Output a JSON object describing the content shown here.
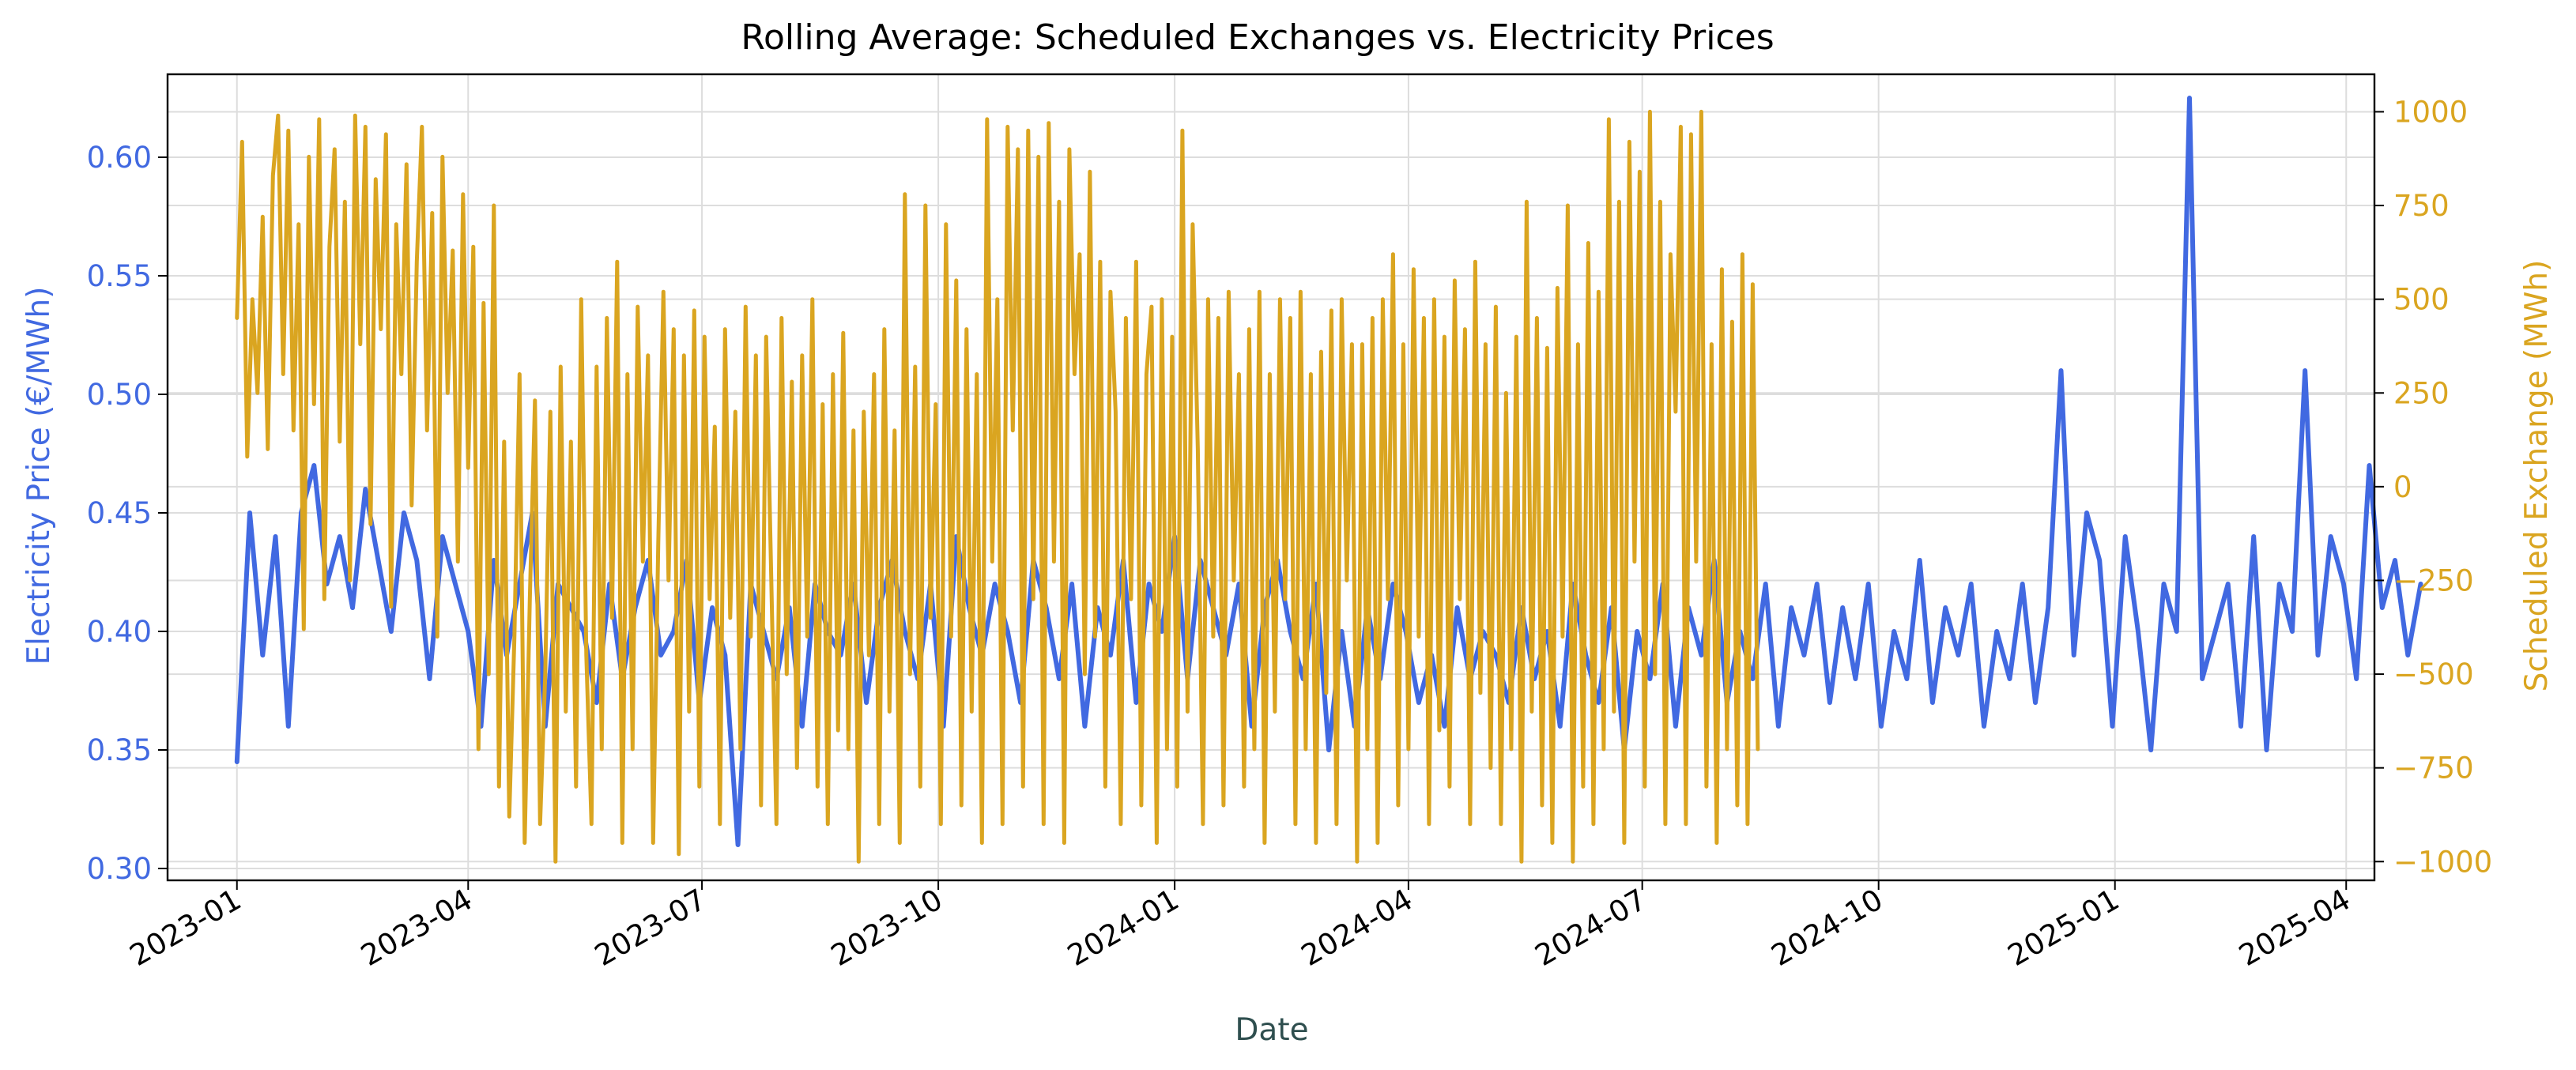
{
  "chart_data": {
    "type": "line",
    "title": "Rolling Average: Scheduled Exchanges vs. Electricity Prices",
    "xlabel": "Date",
    "ylabel_left": "Electricity Price (€/MWh)",
    "ylabel_right": "Scheduled Exchange (MWh)",
    "x_range": [
      "2022-12-05",
      "2025-04-12"
    ],
    "x_ticks": [
      "2023-01",
      "2023-04",
      "2023-07",
      "2023-10",
      "2024-01",
      "2024-04",
      "2024-07",
      "2024-10",
      "2025-01",
      "2025-04"
    ],
    "ylim_left": [
      0.295,
      0.635
    ],
    "yticks_left": [
      "0.30",
      "0.35",
      "0.40",
      "0.45",
      "0.50",
      "0.55",
      "0.60"
    ],
    "ylim_right": [
      -1050,
      1100
    ],
    "yticks_right": [
      "−1000",
      "−750",
      "−500",
      "−250",
      "0",
      "250",
      "500",
      "750",
      "1000"
    ],
    "grid": true,
    "colors": {
      "price": "#4169e1",
      "exchange": "#daa520",
      "xlabel": "#2f4f4f",
      "grid": "#dddddd"
    },
    "series": [
      {
        "axis": "left",
        "color": "#4169e1",
        "start_date": "2023-01-01",
        "step_days": 5,
        "values": [
          0.345,
          0.45,
          0.39,
          0.44,
          0.36,
          0.45,
          0.47,
          0.42,
          0.44,
          0.41,
          0.46,
          0.43,
          0.4,
          0.45,
          0.43,
          0.38,
          0.44,
          0.42,
          0.4,
          0.36,
          0.43,
          0.39,
          0.42,
          0.45,
          0.36,
          0.42,
          0.41,
          0.4,
          0.37,
          0.42,
          0.38,
          0.41,
          0.43,
          0.39,
          0.4,
          0.43,
          0.37,
          0.41,
          0.39,
          0.31,
          0.42,
          0.4,
          0.38,
          0.41,
          0.36,
          0.42,
          0.4,
          0.39,
          0.42,
          0.37,
          0.41,
          0.43,
          0.4,
          0.38,
          0.42,
          0.36,
          0.44,
          0.41,
          0.39,
          0.42,
          0.4,
          0.37,
          0.43,
          0.41,
          0.38,
          0.42,
          0.36,
          0.41,
          0.39,
          0.43,
          0.37,
          0.42,
          0.4,
          0.44,
          0.38,
          0.43,
          0.41,
          0.39,
          0.42,
          0.36,
          0.41,
          0.43,
          0.4,
          0.38,
          0.42,
          0.35,
          0.4,
          0.36,
          0.41,
          0.38,
          0.42,
          0.4,
          0.37,
          0.39,
          0.36,
          0.41,
          0.38,
          0.4,
          0.39,
          0.37,
          0.41,
          0.38,
          0.4,
          0.36,
          0.42,
          0.39,
          0.37,
          0.41,
          0.35,
          0.4,
          0.38,
          0.42,
          0.36,
          0.41,
          0.39,
          0.43,
          0.37,
          0.4,
          0.38,
          0.42,
          0.36,
          0.41,
          0.39,
          0.42,
          0.37,
          0.41,
          0.38,
          0.42,
          0.36,
          0.4,
          0.38,
          0.43,
          0.37,
          0.41,
          0.39,
          0.42,
          0.36,
          0.4,
          0.38,
          0.42,
          0.37,
          0.41,
          0.51,
          0.39,
          0.45,
          0.43,
          0.36,
          0.44,
          0.4,
          0.35,
          0.42,
          0.4,
          0.625,
          0.38,
          0.4,
          0.42,
          0.36,
          0.44,
          0.35,
          0.42,
          0.4,
          0.51,
          0.39,
          0.44,
          0.42,
          0.38,
          0.47,
          0.41,
          0.43,
          0.39,
          0.42
        ]
      },
      {
        "axis": "right",
        "color": "#daa520",
        "start_date": "2023-01-01",
        "step_days": 2,
        "values": [
          450,
          920,
          80,
          500,
          250,
          720,
          100,
          830,
          990,
          300,
          950,
          150,
          700,
          -380,
          880,
          220,
          980,
          -300,
          640,
          900,
          120,
          760,
          -250,
          990,
          380,
          960,
          -100,
          820,
          420,
          940,
          -320,
          700,
          300,
          860,
          -50,
          600,
          960,
          150,
          730,
          -400,
          880,
          250,
          630,
          -200,
          780,
          50,
          640,
          -700,
          490,
          -500,
          750,
          -800,
          120,
          -880,
          -400,
          300,
          -950,
          -300,
          230,
          -900,
          -500,
          200,
          -1000,
          320,
          -600,
          120,
          -800,
          500,
          -450,
          -900,
          320,
          -700,
          450,
          -350,
          600,
          -950,
          300,
          -700,
          480,
          -200,
          350,
          -950,
          -150,
          520,
          -250,
          420,
          -980,
          350,
          -600,
          470,
          -800,
          400,
          -300,
          160,
          -900,
          420,
          -350,
          200,
          -700,
          480,
          -400,
          350,
          -850,
          400,
          -250,
          -900,
          450,
          -500,
          280,
          -750,
          350,
          -400,
          500,
          -800,
          220,
          -900,
          300,
          -650,
          410,
          -700,
          150,
          -1000,
          200,
          -450,
          300,
          -900,
          420,
          -600,
          150,
          -950,
          780,
          -500,
          320,
          -800,
          750,
          -350,
          220,
          -900,
          700,
          -400,
          550,
          -850,
          420,
          -600,
          300,
          -950,
          980,
          -200,
          500,
          -900,
          960,
          150,
          900,
          -800,
          950,
          -300,
          880,
          -900,
          970,
          -200,
          760,
          -950,
          900,
          300,
          620,
          -500,
          840,
          -400,
          600,
          -800,
          520,
          200,
          -900,
          450,
          -300,
          600,
          -850,
          300,
          480,
          -950,
          500,
          -700,
          400,
          -800,
          950,
          -600,
          700,
          100,
          -900,
          500,
          -400,
          450,
          -850,
          520,
          -250,
          300,
          -800,
          420,
          -700,
          520,
          -950,
          300,
          -600,
          500,
          -300,
          450,
          -900,
          520,
          -700,
          300,
          -950,
          360,
          -550,
          470,
          -900,
          500,
          -250,
          380,
          -1000,
          380,
          -700,
          450,
          -950,
          500,
          -300,
          620,
          -850,
          380,
          -700,
          580,
          -400,
          450,
          -900,
          500,
          -650,
          400,
          -800,
          550,
          -300,
          420,
          -900,
          600,
          -550,
          380,
          -750,
          480,
          -900,
          250,
          -700,
          400,
          -1000,
          760,
          -600,
          450,
          -850,
          370,
          -950,
          530,
          -400,
          750,
          -1000,
          380,
          -800,
          650,
          -900,
          520,
          -700,
          980,
          -600,
          760,
          -950,
          920,
          -200,
          840,
          -800,
          1000,
          -500,
          760,
          -900,
          620,
          200,
          960,
          -900,
          940,
          -200,
          1000,
          -800,
          380,
          -950,
          580,
          -700,
          440,
          -850,
          620,
          -900,
          540,
          -700
        ]
      }
    ]
  }
}
